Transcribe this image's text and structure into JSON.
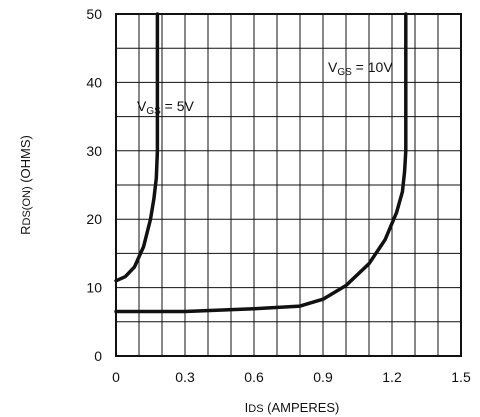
{
  "chart_data": {
    "type": "line",
    "xlabel_main": "I",
    "xlabel_sub": "DS",
    "xlabel_rest": " (AMPERES)",
    "ylabel_main": "R",
    "ylabel_sub": "DS(ON)",
    "ylabel_rest": " (OHMS)",
    "xlim": [
      0,
      1.5
    ],
    "ylim": [
      0,
      50
    ],
    "x_ticks": [
      0,
      0.3,
      0.6,
      0.9,
      1.2,
      1.5
    ],
    "x_tick_labels": [
      "0",
      "0.3",
      "0.6",
      "0.9",
      "1.2",
      "1.5"
    ],
    "y_ticks": [
      0,
      10,
      20,
      30,
      40,
      50
    ],
    "y_tick_labels": [
      "0",
      "10",
      "20",
      "30",
      "40",
      "50"
    ],
    "grid": true,
    "series": [
      {
        "label_main": "V",
        "label_sub": "GS",
        "label_rest": " = 5V",
        "x": [
          0.0,
          0.04,
          0.08,
          0.12,
          0.15,
          0.165,
          0.175,
          0.18,
          0.18
        ],
        "y": [
          11.0,
          11.6,
          13.0,
          16.0,
          20.0,
          23.0,
          26.0,
          30.0,
          50.0
        ]
      },
      {
        "label_main": "V",
        "label_sub": "GS",
        "label_rest": " = 10V",
        "x": [
          0.0,
          0.3,
          0.6,
          0.8,
          0.9,
          1.0,
          1.1,
          1.17,
          1.22,
          1.245,
          1.255,
          1.26,
          1.26
        ],
        "y": [
          6.5,
          6.5,
          6.9,
          7.3,
          8.3,
          10.3,
          13.5,
          17.0,
          21.0,
          24.0,
          27.0,
          30.0,
          50.0
        ]
      }
    ]
  }
}
